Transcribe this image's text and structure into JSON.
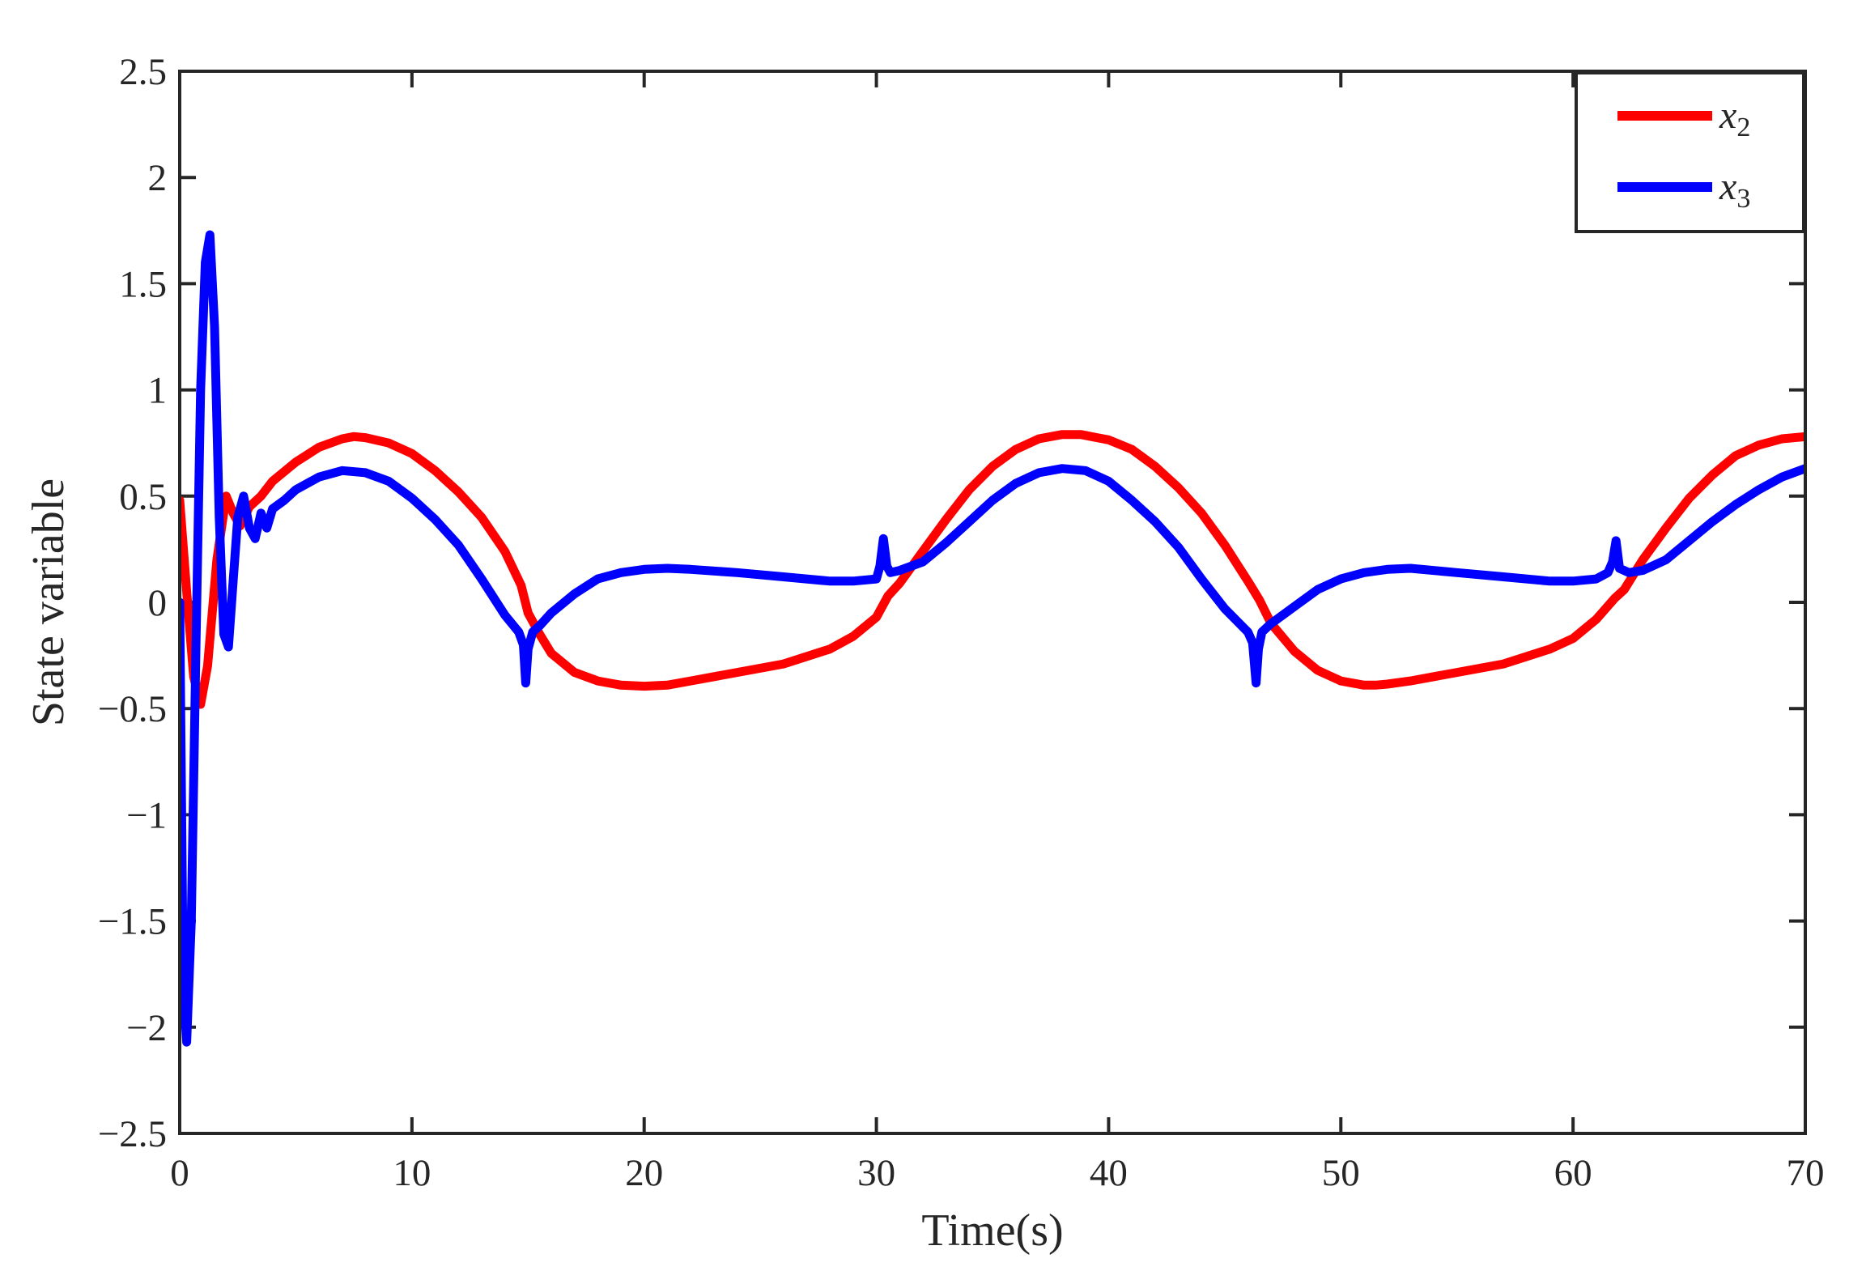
{
  "chart_data": {
    "type": "line",
    "title": "",
    "xlabel": "Time(s)",
    "ylabel": "State variable",
    "xlim": [
      0,
      70
    ],
    "ylim": [
      -2.5,
      2.5
    ],
    "xticks": [
      0,
      10,
      20,
      30,
      40,
      50,
      60,
      70
    ],
    "yticks": [
      2.5,
      2,
      1.5,
      1,
      0.5,
      0,
      -0.5,
      -1,
      -1.5,
      -2,
      -2.5
    ],
    "xtick_labels": [
      "0",
      "10",
      "20",
      "30",
      "40",
      "50",
      "60",
      "70"
    ],
    "ytick_labels": [
      "2.5",
      "2",
      "1.5",
      "1",
      "0.5",
      "0",
      "−0.5",
      "−1",
      "−1.5",
      "−2",
      "−2.5"
    ],
    "grid": false,
    "legend_position": "top-right",
    "series": [
      {
        "name": "x2",
        "legend_base": "x",
        "legend_sub": "2",
        "color": "#ff0000",
        "x": [
          0,
          0.3,
          0.6,
          0.9,
          1.2,
          1.6,
          2.0,
          2.3,
          2.6,
          3.0,
          3.5,
          4,
          5,
          6,
          7,
          7.5,
          8,
          9,
          10,
          11,
          12,
          13,
          14,
          14.7,
          15,
          15.5,
          16,
          17,
          18,
          19,
          20,
          21,
          22,
          24,
          26,
          28,
          29,
          30,
          30.5,
          31,
          32,
          33,
          34,
          35,
          36,
          37,
          38,
          38.8,
          39.5,
          40,
          41,
          42,
          43,
          44,
          45,
          46,
          46.5,
          47,
          48,
          49,
          50,
          51,
          51.5,
          52,
          53,
          55,
          57,
          59,
          60,
          61,
          61.8,
          62.2,
          63,
          64,
          65,
          66,
          67,
          68,
          69,
          70
        ],
        "y": [
          0.48,
          0.05,
          -0.35,
          -0.48,
          -0.3,
          0.2,
          0.5,
          0.42,
          0.36,
          0.45,
          0.5,
          0.57,
          0.66,
          0.73,
          0.77,
          0.78,
          0.775,
          0.75,
          0.7,
          0.62,
          0.52,
          0.4,
          0.24,
          0.08,
          -0.05,
          -0.15,
          -0.24,
          -0.33,
          -0.37,
          -0.39,
          -0.395,
          -0.39,
          -0.37,
          -0.33,
          -0.29,
          -0.22,
          -0.16,
          -0.07,
          0.03,
          0.09,
          0.24,
          0.39,
          0.53,
          0.64,
          0.72,
          0.77,
          0.79,
          0.79,
          0.775,
          0.765,
          0.72,
          0.64,
          0.54,
          0.42,
          0.27,
          0.1,
          0.01,
          -0.1,
          -0.23,
          -0.32,
          -0.37,
          -0.39,
          -0.39,
          -0.385,
          -0.37,
          -0.33,
          -0.29,
          -0.22,
          -0.17,
          -0.08,
          0.02,
          0.06,
          0.2,
          0.35,
          0.49,
          0.6,
          0.69,
          0.74,
          0.77,
          0.78
        ]
      },
      {
        "name": "x3",
        "legend_base": "x",
        "legend_sub": "3",
        "color": "#0000ff",
        "x": [
          0,
          0.15,
          0.3,
          0.5,
          0.7,
          0.9,
          1.1,
          1.3,
          1.5,
          1.7,
          1.9,
          2.1,
          2.3,
          2.5,
          2.75,
          3.0,
          3.25,
          3.5,
          3.75,
          4.0,
          4.5,
          5,
          6,
          7,
          8,
          9,
          10,
          11,
          12,
          13,
          14,
          14.6,
          14.8,
          14.9,
          15.0,
          15.2,
          15.5,
          16,
          17,
          18,
          19,
          20,
          21,
          22,
          24,
          26,
          28,
          29,
          30,
          30.15,
          30.3,
          30.45,
          30.6,
          31,
          32,
          33,
          34,
          35,
          36,
          37,
          38,
          39,
          40,
          41,
          42,
          43,
          44,
          45,
          46,
          46.2,
          46.35,
          46.45,
          46.6,
          47,
          48,
          49,
          50,
          51,
          52,
          53,
          55,
          57,
          59,
          60,
          61,
          61.5,
          61.7,
          61.85,
          62.0,
          62.4,
          63,
          64,
          65,
          66,
          67,
          68,
          69,
          70
        ],
        "y": [
          0,
          -1.8,
          -2.07,
          -1.5,
          -0.2,
          1.0,
          1.6,
          1.73,
          1.3,
          0.4,
          -0.15,
          -0.21,
          0.1,
          0.4,
          0.5,
          0.35,
          0.3,
          0.42,
          0.35,
          0.44,
          0.48,
          0.53,
          0.59,
          0.62,
          0.61,
          0.57,
          0.49,
          0.39,
          0.27,
          0.11,
          -0.06,
          -0.14,
          -0.2,
          -0.38,
          -0.22,
          -0.14,
          -0.11,
          -0.05,
          0.04,
          0.11,
          0.14,
          0.155,
          0.16,
          0.155,
          0.14,
          0.12,
          0.1,
          0.1,
          0.11,
          0.17,
          0.3,
          0.17,
          0.14,
          0.15,
          0.19,
          0.28,
          0.38,
          0.48,
          0.56,
          0.61,
          0.63,
          0.62,
          0.57,
          0.48,
          0.38,
          0.26,
          0.11,
          -0.03,
          -0.14,
          -0.19,
          -0.38,
          -0.22,
          -0.14,
          -0.1,
          -0.02,
          0.06,
          0.11,
          0.14,
          0.155,
          0.16,
          0.14,
          0.12,
          0.1,
          0.1,
          0.11,
          0.14,
          0.19,
          0.29,
          0.16,
          0.14,
          0.15,
          0.2,
          0.29,
          0.38,
          0.46,
          0.53,
          0.59,
          0.63
        ]
      }
    ]
  }
}
